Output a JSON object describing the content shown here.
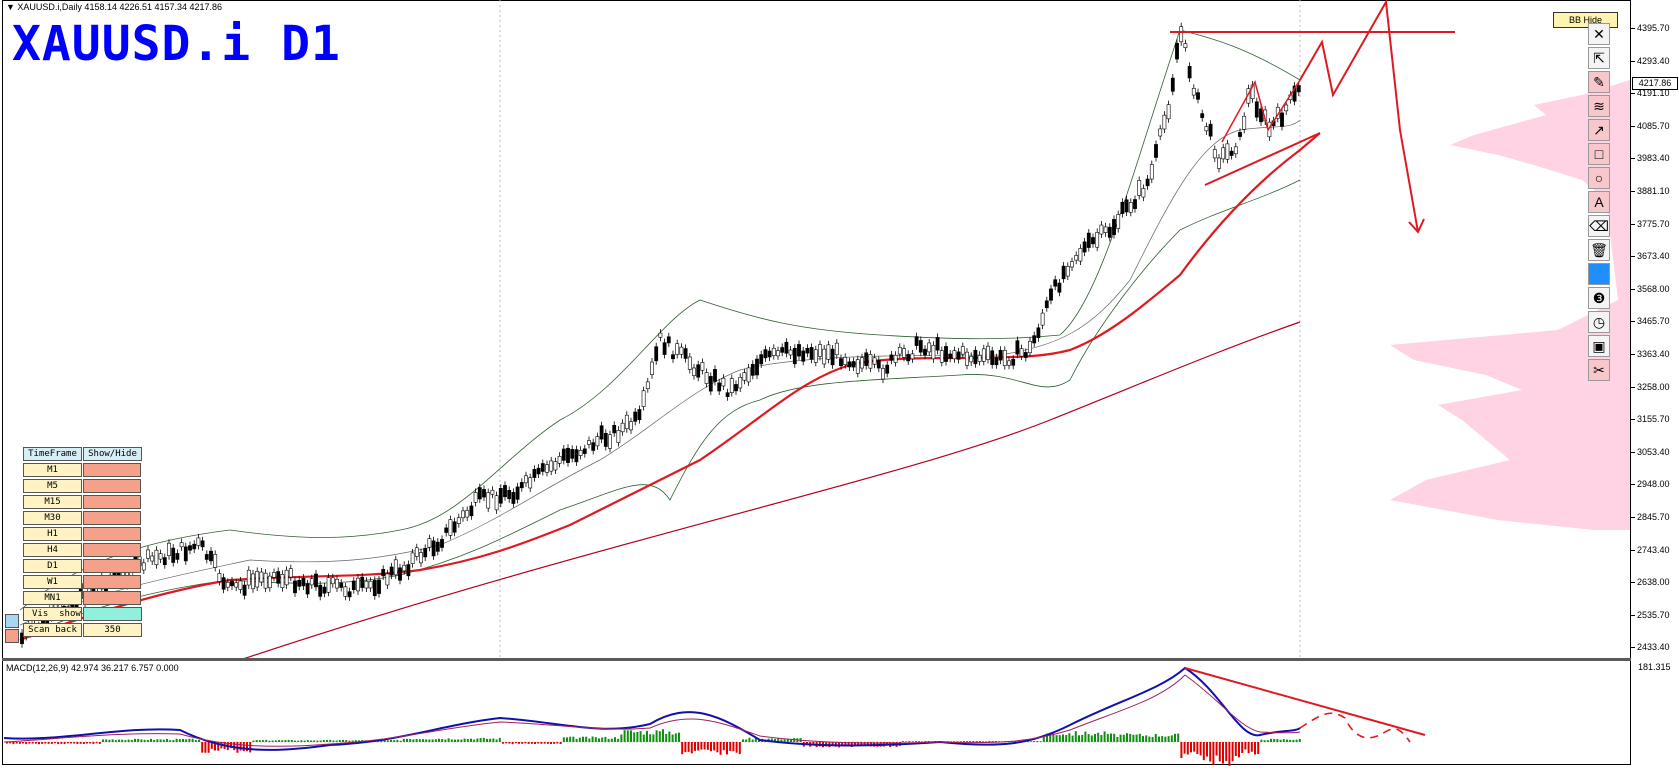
{
  "header": {
    "symbol_line": "XAUUSD.i,Daily  4158.14 4226.51 4157.34 4217.86",
    "big_title": "XAUUSD.i D1"
  },
  "macd": {
    "header": "MACD(12,26,9) 42.974 36.217 6.757 0.000",
    "scale_top": "181.315"
  },
  "price_axis": {
    "ticks": [
      "4395.70",
      "4293.40",
      "4191.10",
      "4085.70",
      "3983.40",
      "3881.10",
      "3775.70",
      "3673.40",
      "3568.00",
      "3465.70",
      "3363.40",
      "3258.00",
      "3155.70",
      "3053.40",
      "2948.00",
      "2845.70",
      "2743.40",
      "2638.00",
      "2535.70",
      "2433.40"
    ],
    "current_price": "4217.86"
  },
  "bb_button": "BB Hide",
  "toolbar": [
    {
      "name": "close-icon",
      "glyph": "✕",
      "style": "plain"
    },
    {
      "name": "cursor-arrow-icon",
      "glyph": "⇱",
      "style": "plain"
    },
    {
      "name": "pencil-icon",
      "glyph": "✎",
      "style": "pink"
    },
    {
      "name": "wave-lines-icon",
      "glyph": "≋",
      "style": "pink"
    },
    {
      "name": "trend-arrow-icon",
      "glyph": "↗",
      "style": "pink"
    },
    {
      "name": "rectangle-icon",
      "glyph": "□",
      "style": "pink"
    },
    {
      "name": "circle-icon",
      "glyph": "○",
      "style": "pink"
    },
    {
      "name": "text-A-icon",
      "glyph": "A",
      "style": "pink"
    },
    {
      "name": "eraser-icon",
      "glyph": "⌫",
      "style": "plain"
    },
    {
      "name": "trash-icon",
      "glyph": "🗑",
      "style": "plain"
    },
    {
      "name": "color-swatch-icon",
      "glyph": "",
      "style": "blue"
    },
    {
      "name": "number-3-icon",
      "glyph": "❸",
      "style": "plain"
    },
    {
      "name": "clock-icon",
      "glyph": "◷",
      "style": "plain"
    },
    {
      "name": "save-icon",
      "glyph": "▣",
      "style": "plain"
    },
    {
      "name": "scissors-icon",
      "glyph": "✂",
      "style": "pink"
    }
  ],
  "timeframe_table": {
    "headers": [
      "TimeFrame",
      "Show/Hide"
    ],
    "rows": [
      "M1",
      "M5",
      "M15",
      "M30",
      "H1",
      "H4",
      "D1",
      "W1",
      "MN1"
    ],
    "vis_label": "Vis",
    "show_label": "show",
    "scan_back_label": "Scan back",
    "scan_back_value": "350"
  },
  "colors": {
    "title_blue": "#0000ff",
    "resistance_red": "#dd1a22",
    "ma_dark_red": "#b3001b",
    "bb_green": "#2f5f2f",
    "macd_blue": "#1111aa",
    "hist_green": "#0f8f0f",
    "hist_red": "#dd0000",
    "volume_pink": "#ff9cc4"
  }
}
